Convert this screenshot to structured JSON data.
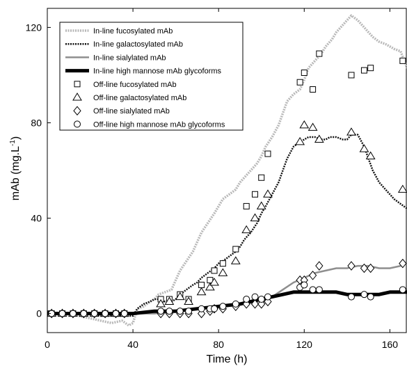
{
  "chart_data": {
    "type": "line",
    "title": "",
    "xlabel": "Time (h)",
    "ylabel": "mAb (mg.L",
    "ylabel_sup": "-1",
    "ylabel_close": ")",
    "xlim": [
      0,
      168
    ],
    "ylim": [
      -8,
      128
    ],
    "xticks": [
      0,
      40,
      80,
      120,
      160
    ],
    "yticks": [
      0,
      40,
      80,
      120
    ],
    "grid": false,
    "legend_position": "top-left",
    "series": [
      {
        "name": "In-line fucosylated mAb",
        "kind": "line",
        "style": "dotted",
        "color": "#b8b8b8",
        "x": [
          0,
          5,
          10,
          15,
          20,
          25,
          30,
          35,
          38,
          40,
          42,
          45,
          48,
          50,
          52,
          55,
          58,
          60,
          62,
          65,
          68,
          70,
          72,
          75,
          78,
          80,
          82,
          85,
          88,
          90,
          92,
          95,
          98,
          100,
          102,
          105,
          108,
          110,
          112,
          115,
          118,
          120,
          122,
          125,
          128,
          130,
          133,
          135,
          138,
          140,
          142,
          145,
          148,
          150,
          152,
          155,
          158,
          160,
          162,
          165,
          168
        ],
        "y": [
          0,
          0,
          0,
          -1,
          -2,
          -3,
          -4,
          -3,
          -5,
          -4,
          2,
          3,
          5,
          6,
          8,
          9,
          10,
          14,
          18,
          22,
          26,
          30,
          34,
          38,
          42,
          45,
          48,
          50,
          52,
          55,
          57,
          60,
          63,
          66,
          70,
          74,
          79,
          84,
          89,
          92,
          94,
          98,
          103,
          106,
          109,
          112,
          115,
          118,
          121,
          123,
          125,
          123,
          120,
          118,
          116,
          114,
          113,
          112,
          111,
          110,
          103
        ]
      },
      {
        "name": "In-line galactosylated mAb",
        "kind": "line",
        "style": "dotted",
        "color": "#111111",
        "x": [
          0,
          5,
          10,
          15,
          20,
          25,
          30,
          35,
          40,
          42,
          45,
          48,
          50,
          52,
          55,
          58,
          60,
          62,
          65,
          68,
          70,
          72,
          75,
          78,
          80,
          82,
          85,
          88,
          90,
          92,
          95,
          98,
          100,
          102,
          105,
          108,
          110,
          112,
          115,
          118,
          120,
          122,
          125,
          128,
          130,
          132,
          135,
          138,
          140,
          142,
          145,
          148,
          150,
          152,
          155,
          158,
          160,
          162,
          165,
          168
        ],
        "y": [
          1,
          0,
          0,
          0,
          0,
          -1,
          -1,
          -1,
          -1,
          2,
          4,
          5,
          6,
          6,
          5,
          5,
          6,
          8,
          10,
          12,
          13,
          15,
          17,
          19,
          21,
          22,
          24,
          26,
          28,
          31,
          34,
          38,
          42,
          45,
          50,
          55,
          60,
          65,
          70,
          72,
          73,
          74,
          74,
          73,
          73,
          74,
          74,
          73,
          73,
          75,
          75,
          70,
          65,
          60,
          55,
          52,
          50,
          48,
          46,
          44
        ]
      },
      {
        "name": "In-line sialylated mAb",
        "kind": "line",
        "style": "solid",
        "color": "#8e8e8e",
        "x": [
          0,
          10,
          20,
          30,
          40,
          50,
          60,
          70,
          80,
          90,
          95,
          100,
          105,
          110,
          115,
          120,
          125,
          130,
          135,
          140,
          145,
          150,
          155,
          160,
          165,
          168
        ],
        "y": [
          0,
          0,
          0,
          0,
          0,
          0,
          1,
          2,
          3,
          4,
          5,
          6,
          7,
          10,
          13,
          15,
          17,
          18,
          19,
          19,
          20,
          20,
          19,
          19,
          20,
          21
        ]
      },
      {
        "name": "In-line high mannose mAb glycoforms",
        "kind": "line",
        "style": "solid",
        "color": "#000000",
        "x": [
          0,
          10,
          20,
          30,
          40,
          50,
          60,
          70,
          80,
          90,
          100,
          105,
          110,
          115,
          120,
          125,
          130,
          135,
          140,
          145,
          150,
          155,
          160,
          165,
          168
        ],
        "y": [
          0,
          0,
          0,
          0,
          0,
          1,
          1,
          2,
          3,
          4,
          6,
          7,
          8,
          9,
          9,
          9,
          9,
          9,
          8,
          8,
          8,
          8,
          9,
          9,
          9
        ]
      },
      {
        "name": "Off-line fucosylated mAb",
        "kind": "marker",
        "marker": "square",
        "x": [
          2,
          7,
          12,
          17,
          22,
          27,
          32,
          36,
          53,
          57,
          62,
          66,
          72,
          76,
          78,
          82,
          88,
          93,
          97,
          100,
          103,
          118,
          120,
          124,
          127,
          142,
          148,
          151,
          166
        ],
        "y": [
          0,
          0,
          0,
          0,
          0,
          0,
          0,
          0,
          6,
          6,
          8,
          6,
          12,
          14,
          18,
          21,
          27,
          45,
          50,
          57,
          67,
          97,
          101,
          94,
          109,
          100,
          102,
          103,
          106
        ]
      },
      {
        "name": "Off-line galactosylated mAb",
        "kind": "marker",
        "marker": "triangle",
        "x": [
          2,
          7,
          12,
          17,
          22,
          27,
          32,
          36,
          53,
          57,
          62,
          66,
          72,
          76,
          78,
          82,
          88,
          93,
          97,
          100,
          103,
          118,
          120,
          124,
          127,
          142,
          148,
          151,
          166
        ],
        "y": [
          0,
          0,
          0,
          0,
          0,
          0,
          0,
          0,
          4,
          5,
          7,
          5,
          9,
          11,
          13,
          17,
          22,
          35,
          40,
          45,
          50,
          72,
          79,
          78,
          73,
          76,
          69,
          66,
          52
        ]
      },
      {
        "name": "Off-line sialylated mAb",
        "kind": "marker",
        "marker": "diamond",
        "x": [
          2,
          7,
          12,
          17,
          22,
          27,
          32,
          36,
          53,
          57,
          62,
          66,
          72,
          76,
          78,
          82,
          88,
          93,
          97,
          100,
          103,
          118,
          120,
          124,
          127,
          142,
          148,
          151,
          166
        ],
        "y": [
          0,
          0,
          0,
          0,
          0,
          0,
          0,
          0,
          0,
          0,
          0,
          0,
          0,
          1,
          2,
          2,
          3,
          4,
          4,
          4,
          5,
          14,
          14,
          16,
          20,
          20,
          19,
          19,
          21
        ]
      },
      {
        "name": "Off-line high mannose mAb glycoforms",
        "kind": "marker",
        "marker": "circle",
        "x": [
          2,
          7,
          12,
          17,
          22,
          27,
          32,
          36,
          53,
          57,
          62,
          66,
          72,
          76,
          78,
          82,
          88,
          93,
          97,
          100,
          103,
          118,
          120,
          124,
          127,
          142,
          148,
          151,
          166
        ],
        "y": [
          0,
          0,
          0,
          0,
          0,
          0,
          0,
          0,
          1,
          1,
          1,
          1,
          2,
          2,
          2,
          3,
          4,
          6,
          7,
          6,
          7,
          11,
          12,
          10,
          10,
          7,
          8,
          7,
          10
        ]
      }
    ]
  }
}
